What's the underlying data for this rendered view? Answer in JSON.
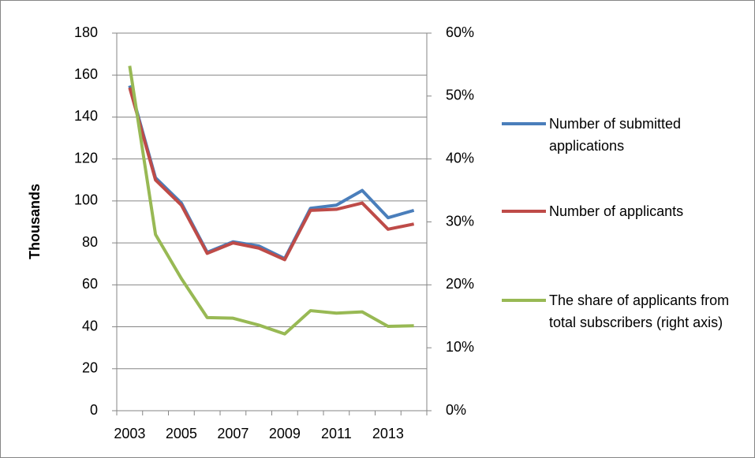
{
  "chart_data": {
    "type": "line",
    "y_label": "Thousands",
    "categories": [
      "2003",
      null,
      "2005",
      null,
      "2007",
      null,
      "2009",
      null,
      "2011",
      null,
      "2013",
      null
    ],
    "series": [
      {
        "name": "Number of submitted applications",
        "color": "#4a7ebb",
        "values": [
          155,
          111,
          99,
          75.5,
          80.5,
          78.5,
          72.5,
          96.5,
          98,
          105,
          92,
          95.5
        ]
      },
      {
        "name": "Number of applicants",
        "color": "#be4b48",
        "values": [
          154,
          110,
          98,
          75,
          80,
          77.5,
          72,
          95.5,
          96,
          99,
          86.5,
          89
        ]
      },
      {
        "name": "The share of applicants from total subscribers (right axis)",
        "color": "#98b954",
        "axis": "y2",
        "values": [
          54.8,
          28,
          21,
          14.8,
          14.7,
          13.6,
          12.2,
          15.9,
          15.5,
          15.7,
          13.4,
          13.5
        ]
      }
    ],
    "ylim": [
      0,
      180
    ],
    "yticks": [
      0,
      20,
      40,
      60,
      80,
      100,
      120,
      140,
      160,
      180
    ],
    "y2lim": [
      0,
      60
    ],
    "y2ticks": [
      {
        "value": 0,
        "label": "0%"
      },
      {
        "value": 10,
        "label": "10%"
      },
      {
        "value": 20,
        "label": "20%"
      },
      {
        "value": 30,
        "label": "30%"
      },
      {
        "value": 40,
        "label": "40%"
      },
      {
        "value": 50,
        "label": "50%"
      },
      {
        "value": 60,
        "label": "60%"
      }
    ],
    "grid": true,
    "legend": "right"
  }
}
